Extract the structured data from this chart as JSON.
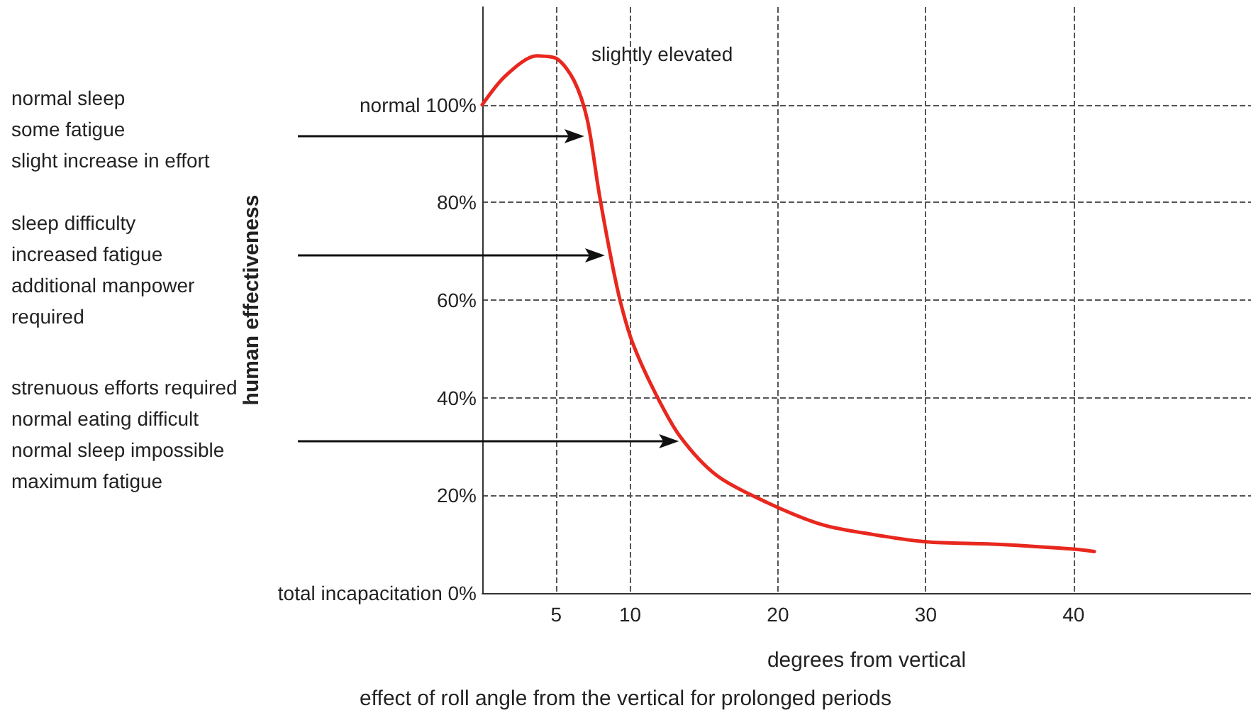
{
  "chart_data": {
    "type": "line",
    "title": "effect of roll angle from the vertical for prolonged periods",
    "xlabel": "degrees from vertical",
    "ylabel": "human effectiveness",
    "x": [
      0,
      1.6,
      3.7,
      5.0,
      6.2,
      7.1,
      7.9,
      8.75,
      9.4,
      10.2,
      11.7,
      13.4,
      15.9,
      19.3,
      23,
      26.4,
      30,
      34.8,
      40,
      41.4
    ],
    "series": [
      {
        "color": "#e8281e",
        "values": [
          100,
          106,
          110,
          109.5,
          105,
          97,
          82,
          68,
          59,
          51,
          41,
          32,
          24,
          18.5,
          14,
          12,
          10.5,
          10,
          9,
          8.5
        ]
      }
    ],
    "xlim": [
      0,
      52
    ],
    "ylim": [
      0,
      120
    ],
    "xticks": [
      5,
      10,
      20,
      30,
      40
    ],
    "yticks": [
      {
        "value": 0,
        "label": "total incapacitation 0%"
      },
      {
        "value": 20,
        "label": "20%"
      },
      {
        "value": 40,
        "label": "40%"
      },
      {
        "value": 60,
        "label": "60%"
      },
      {
        "value": 80,
        "label": "80%"
      },
      {
        "value": 100,
        "label": "normal 100%"
      }
    ],
    "grid": true,
    "annotations": [
      "slightly elevated",
      "normal sleep\nsome fatigue\nslight increase in effort",
      "sleep difficulty\nincreased fatigue\nadditional manpower\nrequired",
      "strenuous efforts required\nnormal eating difficult\nnormal sleep impossible\nmaximum fatigue"
    ]
  }
}
